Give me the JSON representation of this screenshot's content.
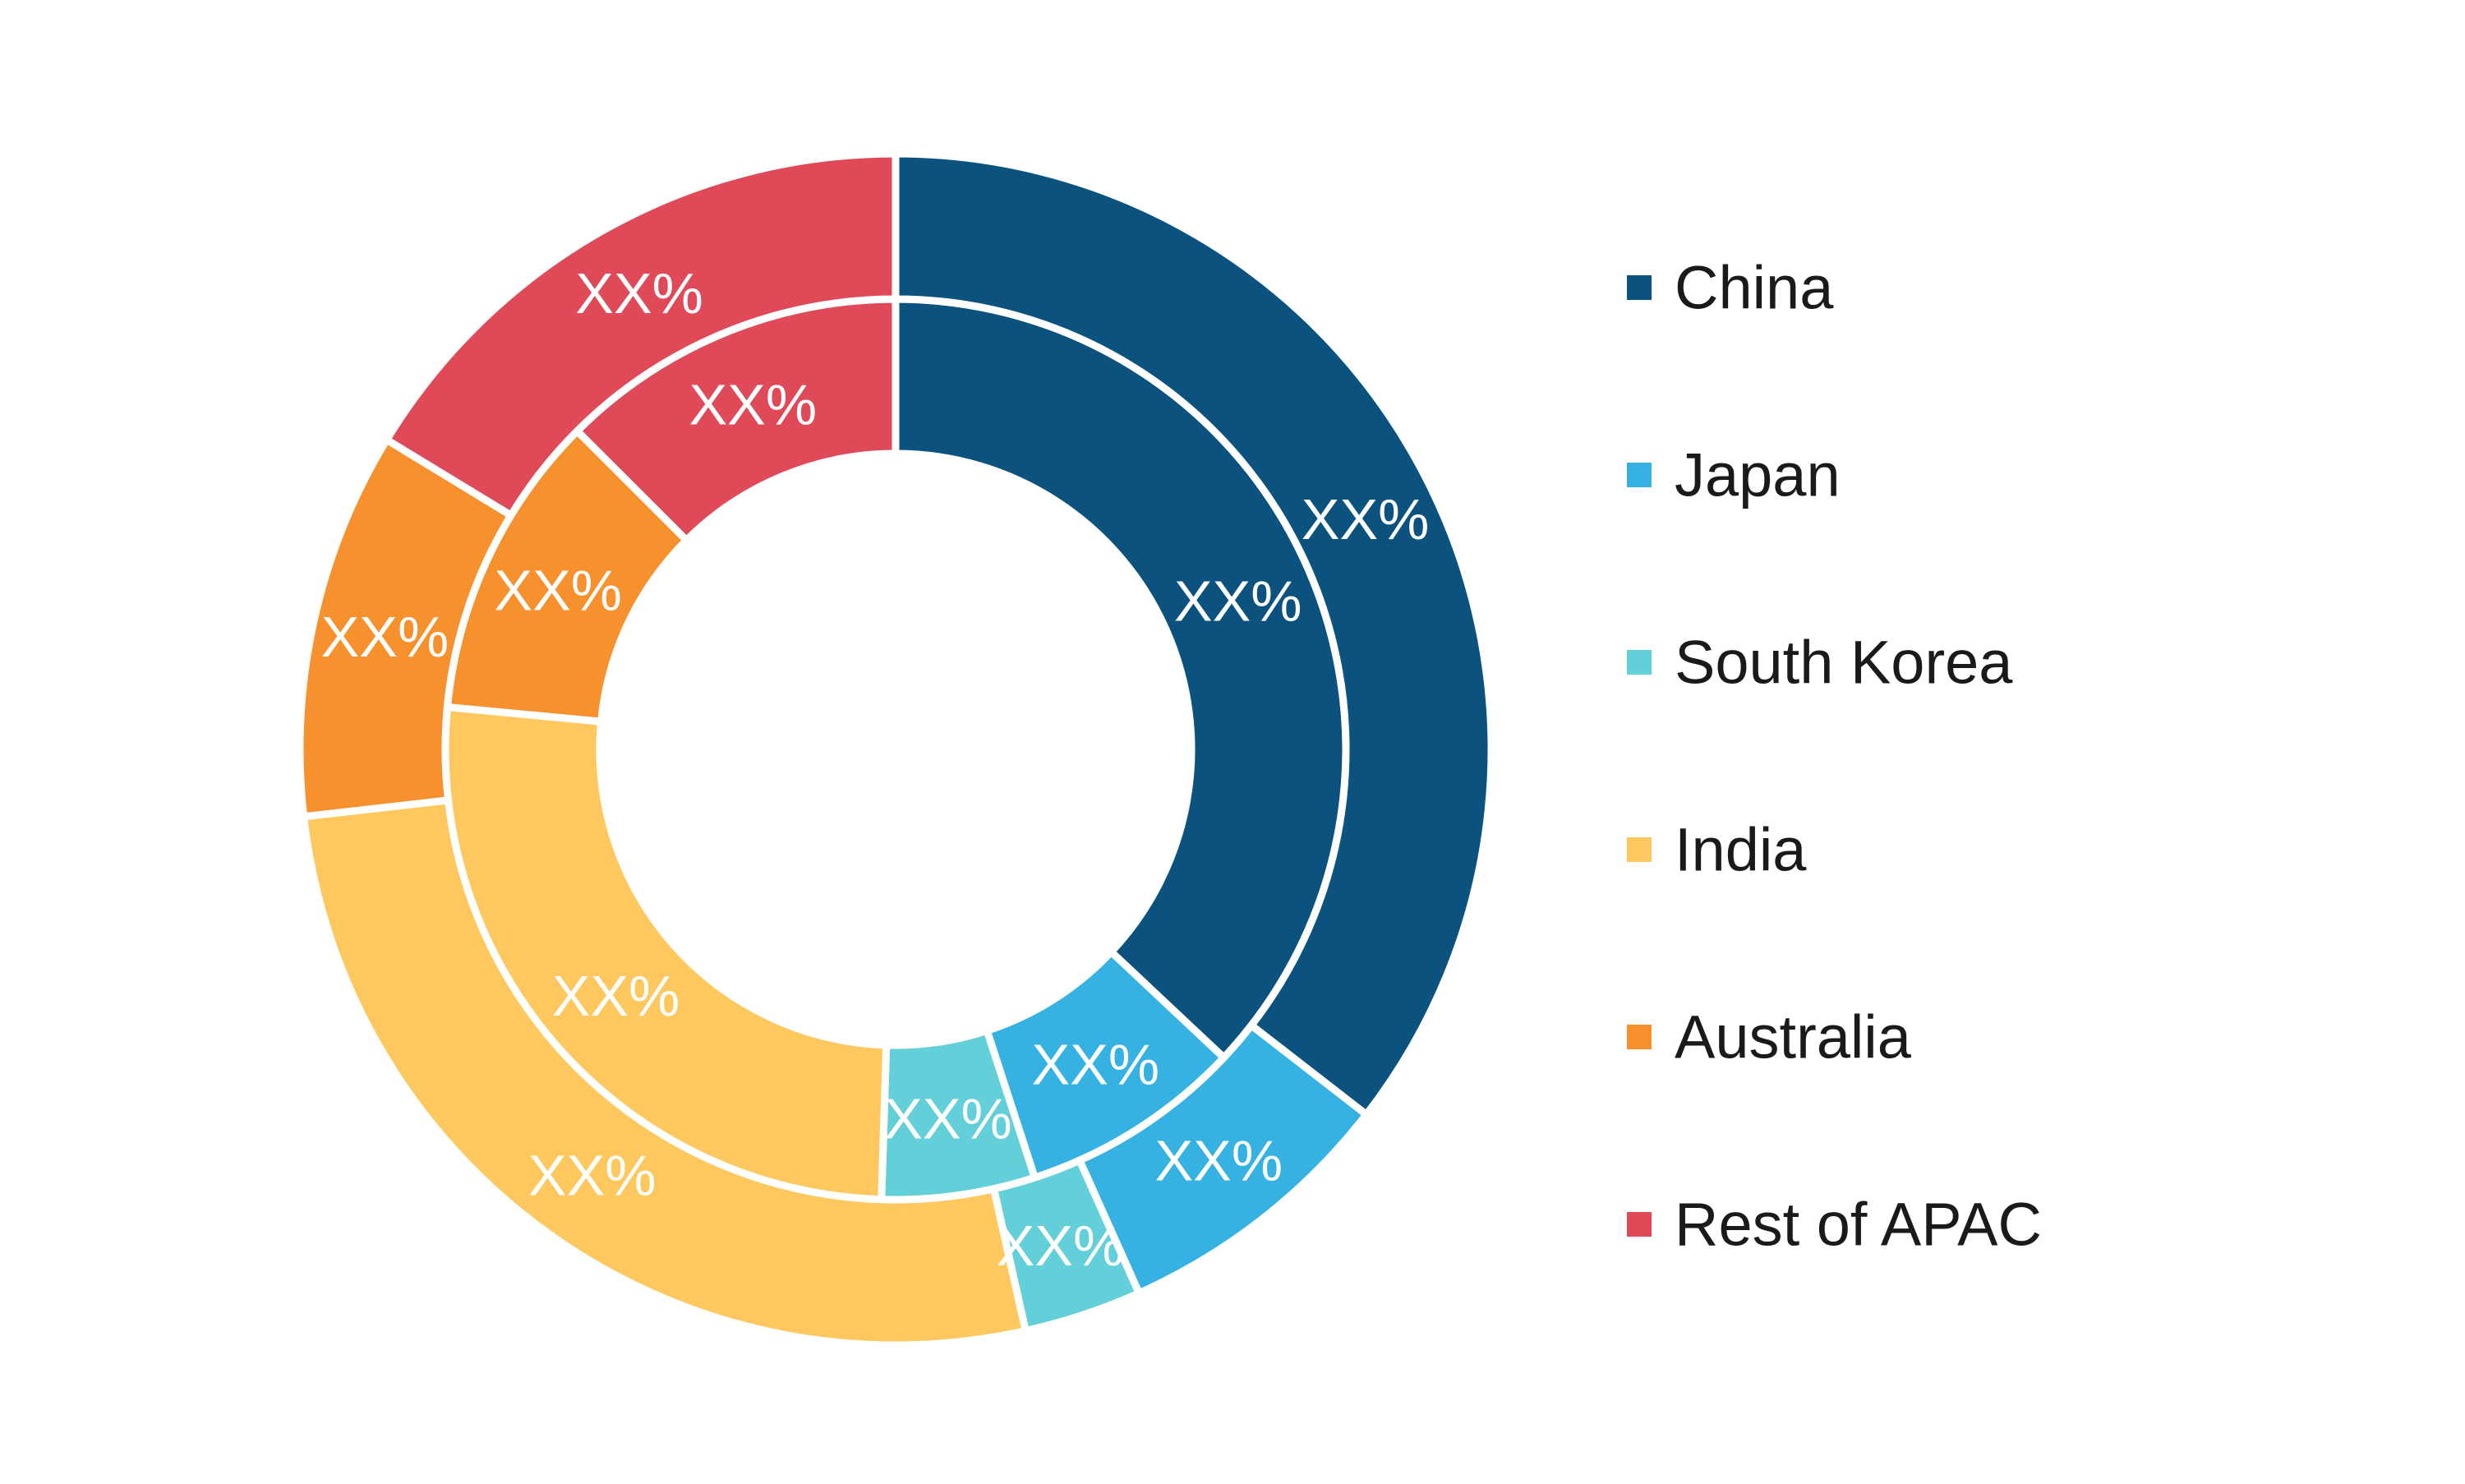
{
  "chart_data": {
    "type": "pie",
    "subtype": "nested-donut",
    "title": "",
    "categories": [
      "China",
      "Japan",
      "South Korea",
      "India",
      "Australia",
      "Rest of APAC"
    ],
    "colors": {
      "China": "#0B527F",
      "Japan": "#35B2E2",
      "South Korea": "#63CFD8",
      "India": "#FEC85E",
      "Australia": "#F7912E",
      "Rest of APAC": "#E04A58"
    },
    "series": [
      {
        "ring": "inner",
        "values": [
          37.0,
          8.0,
          5.5,
          26.0,
          11.0,
          12.5
        ],
        "labels": [
          "XX%",
          "XX%",
          "XX%",
          "XX%",
          "XX%",
          "XX%"
        ]
      },
      {
        "ring": "outer",
        "values": [
          35.5,
          7.8,
          3.2,
          26.7,
          10.5,
          16.3
        ],
        "labels": [
          "XX%",
          "XX%",
          "XX%",
          "XX%",
          "XX%",
          "XX%"
        ]
      }
    ],
    "legend": {
      "position": "right",
      "entries": [
        "China",
        "Japan",
        "South Korea",
        "India",
        "Australia",
        "Rest of APAC"
      ]
    },
    "label_color": "#ffffff",
    "separator_color": "#ffffff",
    "legend_text_color": "#1a1a1a"
  }
}
